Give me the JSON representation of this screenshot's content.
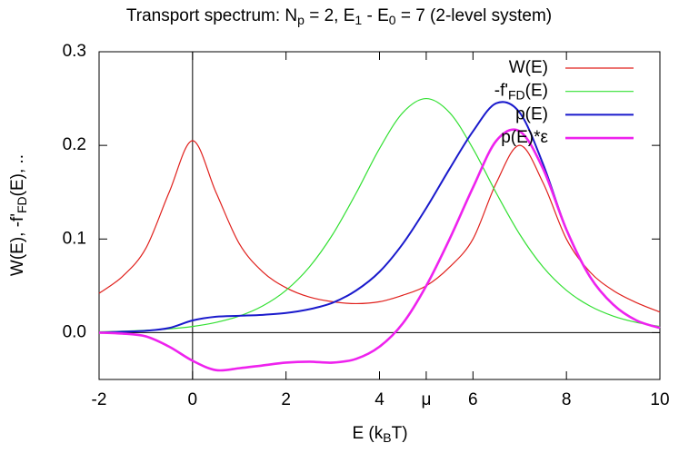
{
  "chart_data": {
    "type": "line",
    "title": [
      "Transport spectrum: N",
      "p",
      " = 2, E",
      "1",
      " - E",
      "0",
      " = 7 (2-level system)"
    ],
    "xlabel": [
      "E (k",
      "B",
      "T)"
    ],
    "ylabel": [
      "W(E), -f'",
      "FD",
      "(E), .."
    ],
    "x": [
      -2,
      -1.5,
      -1,
      -0.5,
      0,
      0.5,
      1,
      1.5,
      2,
      2.5,
      3,
      3.5,
      4,
      4.5,
      5,
      5.5,
      6,
      6.5,
      7,
      7.5,
      8,
      8.5,
      9,
      9.5,
      10
    ],
    "series": [
      {
        "name": [
          "W(E)"
        ],
        "color": "#e0201c",
        "width": 1.2,
        "values": [
          0.042,
          0.06,
          0.09,
          0.15,
          0.205,
          0.15,
          0.095,
          0.065,
          0.048,
          0.038,
          0.033,
          0.031,
          0.033,
          0.04,
          0.05,
          0.07,
          0.1,
          0.16,
          0.2,
          0.16,
          0.1,
          0.065,
          0.045,
          0.032,
          0.022
        ]
      },
      {
        "name": [
          "-f'",
          "FD",
          "(E)"
        ],
        "color": "#33e033",
        "width": 1.2,
        "values": [
          0.0009,
          0.0015,
          0.0025,
          0.004,
          0.0066,
          0.0109,
          0.0177,
          0.0285,
          0.0452,
          0.0701,
          0.105,
          0.149,
          0.1966,
          0.235,
          0.25,
          0.235,
          0.1966,
          0.149,
          0.105,
          0.0701,
          0.0452,
          0.0285,
          0.0177,
          0.0109,
          0.0066
        ]
      },
      {
        "name": [
          "p(E)"
        ],
        "color": "#1a1acc",
        "width": 2,
        "values": [
          0.0,
          0.001,
          0.002,
          0.005,
          0.013,
          0.017,
          0.018,
          0.019,
          0.021,
          0.025,
          0.032,
          0.045,
          0.065,
          0.095,
          0.133,
          0.175,
          0.215,
          0.245,
          0.235,
          0.18,
          0.11,
          0.06,
          0.03,
          0.013,
          0.005
        ]
      },
      {
        "name": [
          "p(E)*ε"
        ],
        "color": "#ee22ee",
        "width": 2.6,
        "values": [
          0.0,
          -0.001,
          -0.004,
          -0.015,
          -0.03,
          -0.04,
          -0.038,
          -0.035,
          -0.032,
          -0.031,
          -0.032,
          -0.028,
          -0.015,
          0.01,
          0.05,
          0.1,
          0.155,
          0.205,
          0.215,
          0.175,
          0.11,
          0.06,
          0.03,
          0.013,
          0.005
        ]
      }
    ],
    "xlim": [
      -2,
      10
    ],
    "ylim": [
      -0.05,
      0.3
    ],
    "xticks": [
      -2,
      0,
      2,
      4,
      {
        "value": 5,
        "label": "μ"
      },
      6,
      8,
      10
    ],
    "yticks": [
      {
        "value": 0,
        "label": "0.0"
      },
      0.1,
      0.2,
      0.3
    ],
    "zeroaxis": true,
    "legend": "top-right"
  }
}
